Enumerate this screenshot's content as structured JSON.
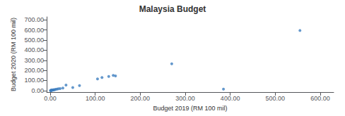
{
  "chart_data": {
    "type": "scatter",
    "title": "Malaysia Budget",
    "xlabel": "Budget 2019 (RM 100 mil)",
    "ylabel": "Budget 2020 (RM 100 mil)",
    "x": [
      0.5,
      1,
      1.5,
      2,
      2.5,
      3,
      4,
      5,
      6,
      7,
      8,
      10,
      12,
      15,
      18,
      22,
      28,
      35,
      50,
      65,
      105,
      115,
      130,
      140,
      145,
      270,
      385,
      555
    ],
    "values": [
      0.5,
      1,
      1.5,
      2,
      2,
      3,
      4,
      5,
      6,
      7,
      8,
      10,
      12,
      15,
      18,
      20,
      25,
      55,
      30,
      50,
      115,
      130,
      140,
      150,
      145,
      265,
      15,
      595
    ],
    "color": "#3d7ebf",
    "xlim": [
      -8,
      630
    ],
    "ylim": [
      -15,
      730
    ],
    "xticks": [
      {
        "value": 0,
        "label": "0.00"
      },
      {
        "value": 100,
        "label": "100.00"
      },
      {
        "value": 200,
        "label": "200.00"
      },
      {
        "value": 300,
        "label": "300.00"
      },
      {
        "value": 400,
        "label": "400.00"
      },
      {
        "value": 500,
        "label": "500.00"
      },
      {
        "value": 600,
        "label": "600.00"
      }
    ],
    "yticks": [
      {
        "value": 0,
        "label": "0.00"
      },
      {
        "value": 100,
        "label": "100.00"
      },
      {
        "value": 200,
        "label": "200.00"
      },
      {
        "value": 300,
        "label": "300.00"
      },
      {
        "value": 400,
        "label": "400.00"
      },
      {
        "value": 500,
        "label": "500.00"
      },
      {
        "value": 600,
        "label": "600.00"
      },
      {
        "value": 700,
        "label": "700.00"
      }
    ],
    "grid": false
  }
}
